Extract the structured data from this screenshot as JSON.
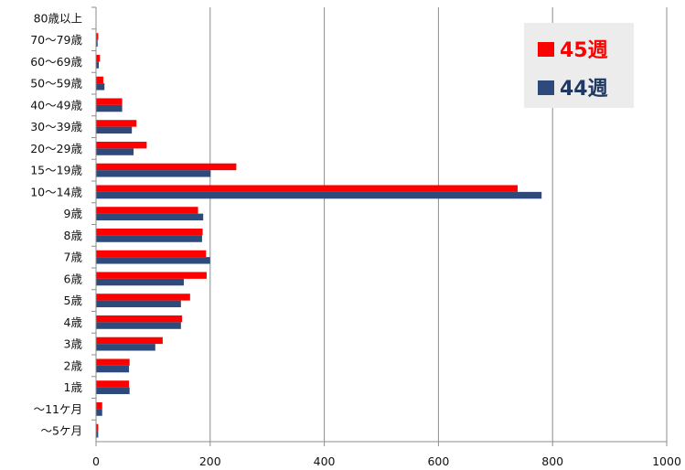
{
  "chart_data": {
    "type": "bar",
    "orientation": "horizontal",
    "categories": [
      "80歳以上",
      "70〜79歳",
      "60〜69歳",
      "50〜59歳",
      "40〜49歳",
      "30〜39歳",
      "20〜29歳",
      "15〜19歳",
      "10〜14歳",
      "9歳",
      "8歳",
      "7歳",
      "6歳",
      "5歳",
      "4歳",
      "3歳",
      "2歳",
      "1歳",
      "〜11ケ月",
      "〜5ケ月"
    ],
    "series": [
      {
        "name": "45週",
        "color": "#ff0000",
        "values": [
          0,
          3,
          6,
          12,
          45,
          70,
          88,
          245,
          738,
          178,
          186,
          192,
          193,
          164,
          150,
          116,
          58,
          57,
          10,
          3
        ]
      },
      {
        "name": "44週",
        "color": "#2e4a7a",
        "values": [
          0,
          2,
          4,
          14,
          45,
          62,
          65,
          200,
          780,
          187,
          185,
          199,
          153,
          148,
          148,
          103,
          57,
          58,
          10,
          3
        ]
      }
    ],
    "xlim": [
      0,
      1000
    ],
    "xticks": [
      0,
      200,
      400,
      600,
      800,
      1000
    ],
    "grid": true,
    "legend": {
      "position": "top-right",
      "entries": [
        {
          "label": "45週",
          "color": "#ff0000",
          "text_color": "#ff0000"
        },
        {
          "label": "44週",
          "color": "#2e4a7a",
          "text_color": "#1f3864"
        }
      ]
    }
  }
}
